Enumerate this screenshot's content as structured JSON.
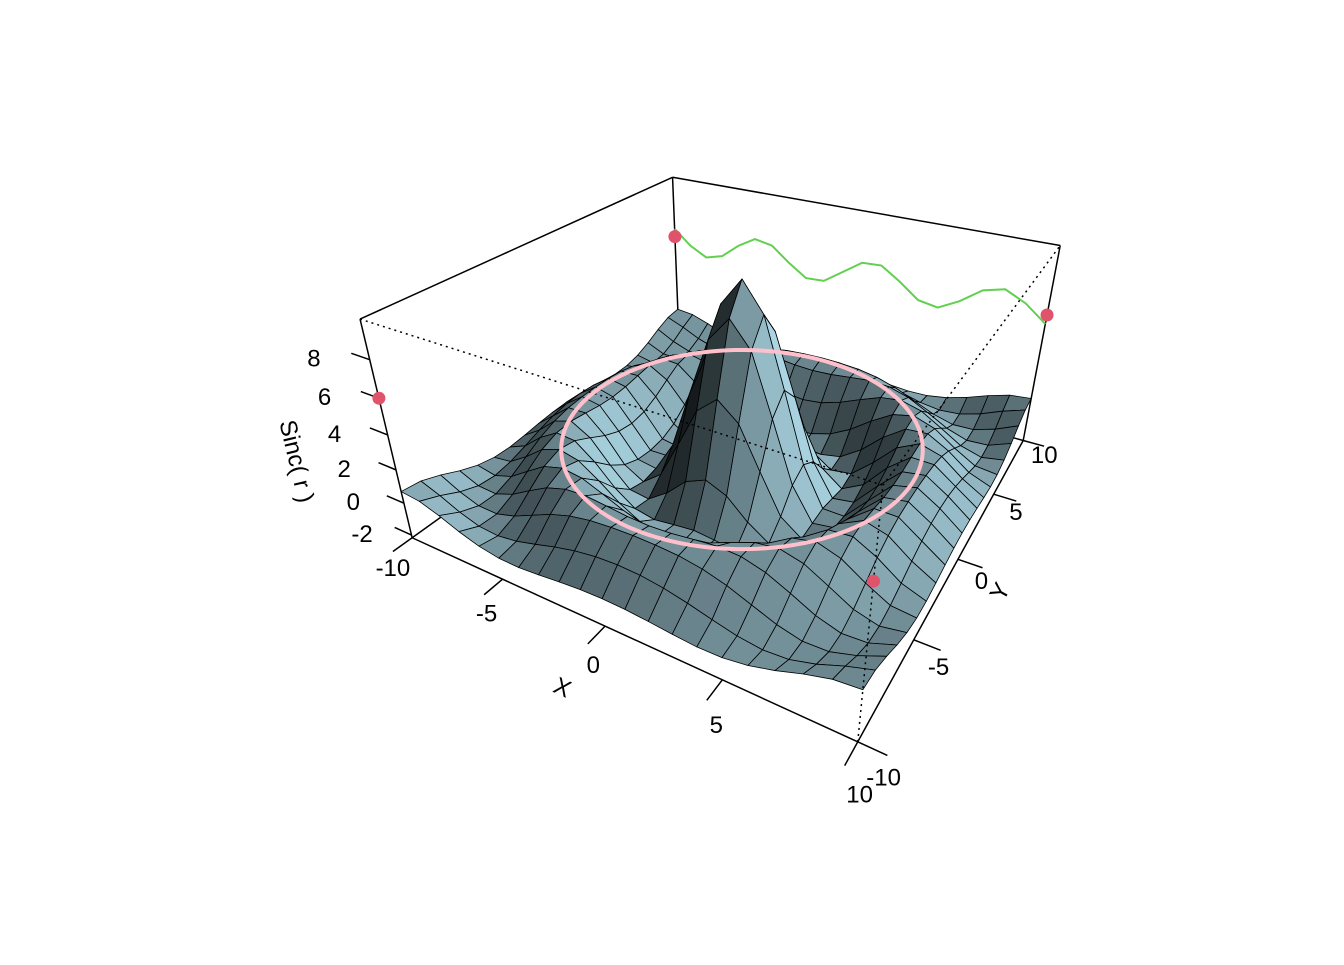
{
  "chart_data": {
    "type": "surface",
    "x": [
      -10,
      -9,
      -8,
      -7,
      -6,
      -5,
      -4,
      -3,
      -2,
      -1,
      0,
      1,
      2,
      3,
      4,
      5,
      6,
      7,
      8,
      9,
      10
    ],
    "y": [
      -10,
      -9,
      -8,
      -7,
      -6,
      -5,
      -4,
      -3,
      -2,
      -1,
      0,
      1,
      2,
      3,
      4,
      5,
      6,
      7,
      8,
      9,
      10
    ],
    "z": [
      [
        0.71,
        0.58,
        0.19,
        -0.29,
        -0.67,
        -0.88,
        -0.91,
        -0.81,
        -0.68,
        -0.58,
        -0.54,
        -0.58,
        -0.68,
        -0.81,
        -0.91,
        -0.88,
        -0.67,
        -0.29,
        0.19,
        0.58,
        0.71
      ],
      [
        0.58,
        0.13,
        -0.42,
        -0.81,
        -0.91,
        -0.74,
        -0.42,
        -0.07,
        0.22,
        0.4,
        0.46,
        0.4,
        0.22,
        -0.07,
        -0.42,
        -0.74,
        -0.91,
        -0.81,
        -0.42,
        0.13,
        0.58
      ],
      [
        0.19,
        -0.42,
        -0.84,
        -0.88,
        -0.54,
        -0.01,
        0.52,
        0.9,
        1.12,
        1.21,
        1.24,
        1.21,
        1.12,
        0.9,
        0.52,
        -0.01,
        -0.54,
        -0.88,
        -0.84,
        -0.42,
        0.19
      ],
      [
        -0.29,
        -0.81,
        -0.88,
        -0.46,
        0.22,
        0.85,
        1.21,
        1.28,
        1.15,
        1.0,
        0.94,
        1.0,
        1.15,
        1.28,
        1.21,
        0.85,
        0.22,
        -0.46,
        -0.88,
        -0.81,
        -0.29
      ],
      [
        -0.67,
        -0.91,
        -0.54,
        0.22,
        0.95,
        1.28,
        1.11,
        0.61,
        0.07,
        -0.33,
        -0.47,
        -0.33,
        0.07,
        0.61,
        1.11,
        1.28,
        0.95,
        0.22,
        -0.54,
        -0.91,
        -0.67
      ],
      [
        -0.88,
        -0.74,
        -0.01,
        0.85,
        1.28,
        1.0,
        0.19,
        -0.75,
        -1.45,
        -1.82,
        -1.92,
        -1.82,
        -1.45,
        -0.75,
        0.19,
        1.0,
        1.28,
        0.85,
        -0.01,
        -0.74,
        -0.88
      ],
      [
        -0.91,
        -0.42,
        0.52,
        1.21,
        1.11,
        0.19,
        -1.04,
        -1.92,
        -2.17,
        -2.02,
        -1.89,
        -2.02,
        -2.17,
        -1.92,
        -1.04,
        0.19,
        1.11,
        1.21,
        0.52,
        -0.42,
        -0.91
      ],
      [
        -0.81,
        -0.07,
        0.9,
        1.28,
        0.61,
        -0.75,
        -1.92,
        -2.1,
        -1.24,
        -0.07,
        0.47,
        -0.07,
        -1.24,
        -2.1,
        -1.92,
        -0.75,
        0.61,
        1.28,
        0.9,
        -0.07,
        -0.81
      ],
      [
        -0.68,
        0.22,
        1.12,
        1.15,
        0.07,
        -1.45,
        -2.17,
        -1.24,
        1.09,
        3.52,
        4.55,
        3.52,
        1.09,
        -1.24,
        -2.17,
        -1.45,
        0.07,
        1.15,
        1.12,
        0.22,
        -0.68
      ],
      [
        -0.58,
        0.4,
        1.21,
        1.0,
        -0.33,
        -1.82,
        -2.02,
        -0.07,
        3.52,
        6.98,
        8.41,
        6.98,
        3.52,
        -0.07,
        -2.02,
        -1.82,
        -0.33,
        1.0,
        1.21,
        0.4,
        -0.58
      ],
      [
        -0.54,
        0.46,
        1.24,
        0.94,
        -0.47,
        -1.92,
        -1.89,
        0.47,
        4.55,
        8.41,
        10,
        8.41,
        4.55,
        0.47,
        -1.89,
        -1.92,
        -0.47,
        0.94,
        1.24,
        0.46,
        -0.54
      ],
      [
        -0.58,
        0.4,
        1.21,
        1.0,
        -0.33,
        -1.82,
        -2.02,
        -0.07,
        3.52,
        6.98,
        8.41,
        6.98,
        3.52,
        -0.07,
        -2.02,
        -1.82,
        -0.33,
        1.0,
        1.21,
        0.4,
        -0.58
      ],
      [
        -0.68,
        0.22,
        1.12,
        1.15,
        0.07,
        -1.45,
        -2.17,
        -1.24,
        1.09,
        3.52,
        4.55,
        3.52,
        1.09,
        -1.24,
        -2.17,
        -1.45,
        0.07,
        1.15,
        1.12,
        0.22,
        -0.68
      ],
      [
        -0.81,
        -0.07,
        0.9,
        1.28,
        0.61,
        -0.75,
        -1.92,
        -2.1,
        -1.24,
        -0.07,
        0.47,
        -0.07,
        -1.24,
        -2.1,
        -1.92,
        -0.75,
        0.61,
        1.28,
        0.9,
        -0.07,
        -0.81
      ],
      [
        -0.91,
        -0.42,
        0.52,
        1.21,
        1.11,
        0.19,
        -1.04,
        -1.92,
        -2.17,
        -2.02,
        -1.89,
        -2.02,
        -2.17,
        -1.92,
        -1.04,
        0.19,
        1.11,
        1.21,
        0.52,
        -0.42,
        -0.91
      ],
      [
        -0.88,
        -0.74,
        -0.01,
        0.85,
        1.28,
        1.0,
        0.19,
        -0.75,
        -1.45,
        -1.82,
        -1.92,
        -1.82,
        -1.45,
        -0.75,
        0.19,
        1.0,
        1.28,
        0.85,
        -0.01,
        -0.74,
        -0.88
      ],
      [
        -0.67,
        -0.91,
        -0.54,
        0.22,
        0.95,
        1.28,
        1.11,
        0.61,
        0.07,
        -0.33,
        -0.47,
        -0.33,
        0.07,
        0.61,
        1.11,
        1.28,
        0.95,
        0.22,
        -0.54,
        -0.91,
        -0.67
      ],
      [
        -0.29,
        -0.81,
        -0.88,
        -0.46,
        0.22,
        0.85,
        1.21,
        1.28,
        1.15,
        1.0,
        0.94,
        1.0,
        1.15,
        1.28,
        1.21,
        0.85,
        0.22,
        -0.46,
        -0.88,
        -0.81,
        -0.29
      ],
      [
        0.19,
        -0.42,
        -0.84,
        -0.88,
        -0.54,
        -0.01,
        0.52,
        0.9,
        1.12,
        1.21,
        1.24,
        1.21,
        1.12,
        0.9,
        0.52,
        -0.01,
        -0.54,
        -0.88,
        -0.84,
        -0.42,
        0.19
      ],
      [
        0.58,
        0.13,
        -0.42,
        -0.81,
        -0.91,
        -0.74,
        -0.42,
        -0.07,
        0.22,
        0.4,
        0.46,
        0.4,
        0.22,
        -0.07,
        -0.42,
        -0.74,
        -0.91,
        -0.81,
        -0.42,
        0.13,
        0.58
      ],
      [
        0.71,
        0.58,
        0.19,
        -0.29,
        -0.67,
        -0.88,
        -0.91,
        -0.81,
        -0.68,
        -0.58,
        -0.54,
        -0.58,
        -0.68,
        -0.81,
        -0.91,
        -0.88,
        -0.67,
        -0.29,
        0.19,
        0.58,
        0.71
      ]
    ],
    "color": "#add8e6",
    "xlim": [
      -10,
      10
    ],
    "ylim": [
      -10,
      10
    ],
    "zlim": [
      -2.17,
      10
    ],
    "xticks": [
      -10,
      -5,
      0,
      5,
      10
    ],
    "yticks": [
      -10,
      -5,
      0,
      5,
      10
    ],
    "zticks": [
      -2,
      0,
      2,
      4,
      6,
      8
    ],
    "xlabel": "X",
    "ylabel": "Y",
    "zlabel": "Sinc( r )",
    "points": {
      "color": "#df536b",
      "x": [
        -10,
        10,
        -10,
        10
      ],
      "y": [
        -10,
        -10,
        10,
        10
      ],
      "z": [
        6,
        6,
        6,
        6
      ]
    },
    "line": {
      "color": "#61d04f",
      "y": 10,
      "z": [
        6.54,
        5.59,
        5.01,
        5.34,
        6.28,
        6.96,
        6.76,
        5.86,
        5.09,
        5.16,
        6,
        6.84,
        6.91,
        6.14,
        5.24,
        5.04,
        5.72,
        6.66,
        6.99,
        6.41,
        5.46
      ]
    },
    "ring": {
      "color": "pink",
      "radius": 7.725,
      "z": 1.28
    }
  }
}
